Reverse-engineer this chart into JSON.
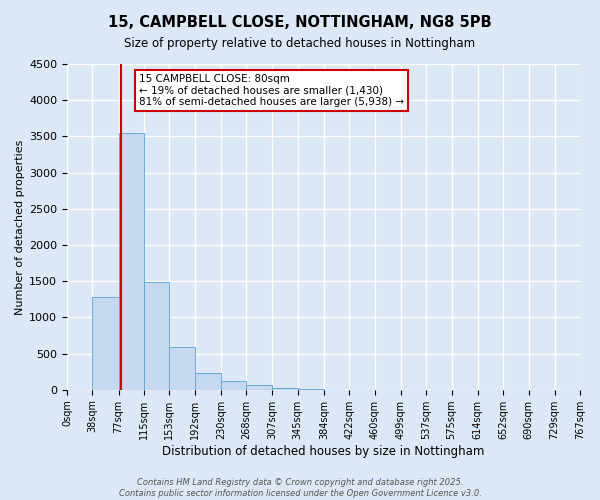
{
  "title": "15, CAMPBELL CLOSE, NOTTINGHAM, NG8 5PB",
  "subtitle": "Size of property relative to detached houses in Nottingham",
  "xlabel": "Distribution of detached houses by size in Nottingham",
  "ylabel": "Number of detached properties",
  "bar_color": "#c5d8f0",
  "bar_edge_color": "#6aaad4",
  "background_color": "#dce8f5",
  "fig_background_color": "#dce8f5",
  "grid_color": "#ffffff",
  "bin_edges": [
    0,
    38,
    77,
    115,
    153,
    192,
    230,
    268,
    307,
    345,
    384,
    422,
    460,
    499,
    537,
    575,
    614,
    652,
    690,
    729,
    767
  ],
  "bin_labels": [
    "0sqm",
    "38sqm",
    "77sqm",
    "115sqm",
    "153sqm",
    "192sqm",
    "230sqm",
    "268sqm",
    "307sqm",
    "345sqm",
    "384sqm",
    "422sqm",
    "460sqm",
    "499sqm",
    "537sqm",
    "575sqm",
    "614sqm",
    "652sqm",
    "690sqm",
    "729sqm",
    "767sqm"
  ],
  "counts": [
    0,
    1280,
    3540,
    1490,
    590,
    230,
    115,
    65,
    20,
    5,
    0,
    0,
    0,
    0,
    0,
    0,
    0,
    0,
    0,
    0
  ],
  "ylim": [
    0,
    4500
  ],
  "yticks": [
    0,
    500,
    1000,
    1500,
    2000,
    2500,
    3000,
    3500,
    4000,
    4500
  ],
  "vline_x": 80,
  "vline_color": "#cc0000",
  "annotation_title": "15 CAMPBELL CLOSE: 80sqm",
  "annotation_line1": "← 19% of detached houses are smaller (1,430)",
  "annotation_line2": "81% of semi-detached houses are larger (5,938) →",
  "annotation_box_color": "#ffffff",
  "annotation_box_edge": "#cc0000",
  "footnote1": "Contains HM Land Registry data © Crown copyright and database right 2025.",
  "footnote2": "Contains public sector information licensed under the Open Government Licence v3.0."
}
